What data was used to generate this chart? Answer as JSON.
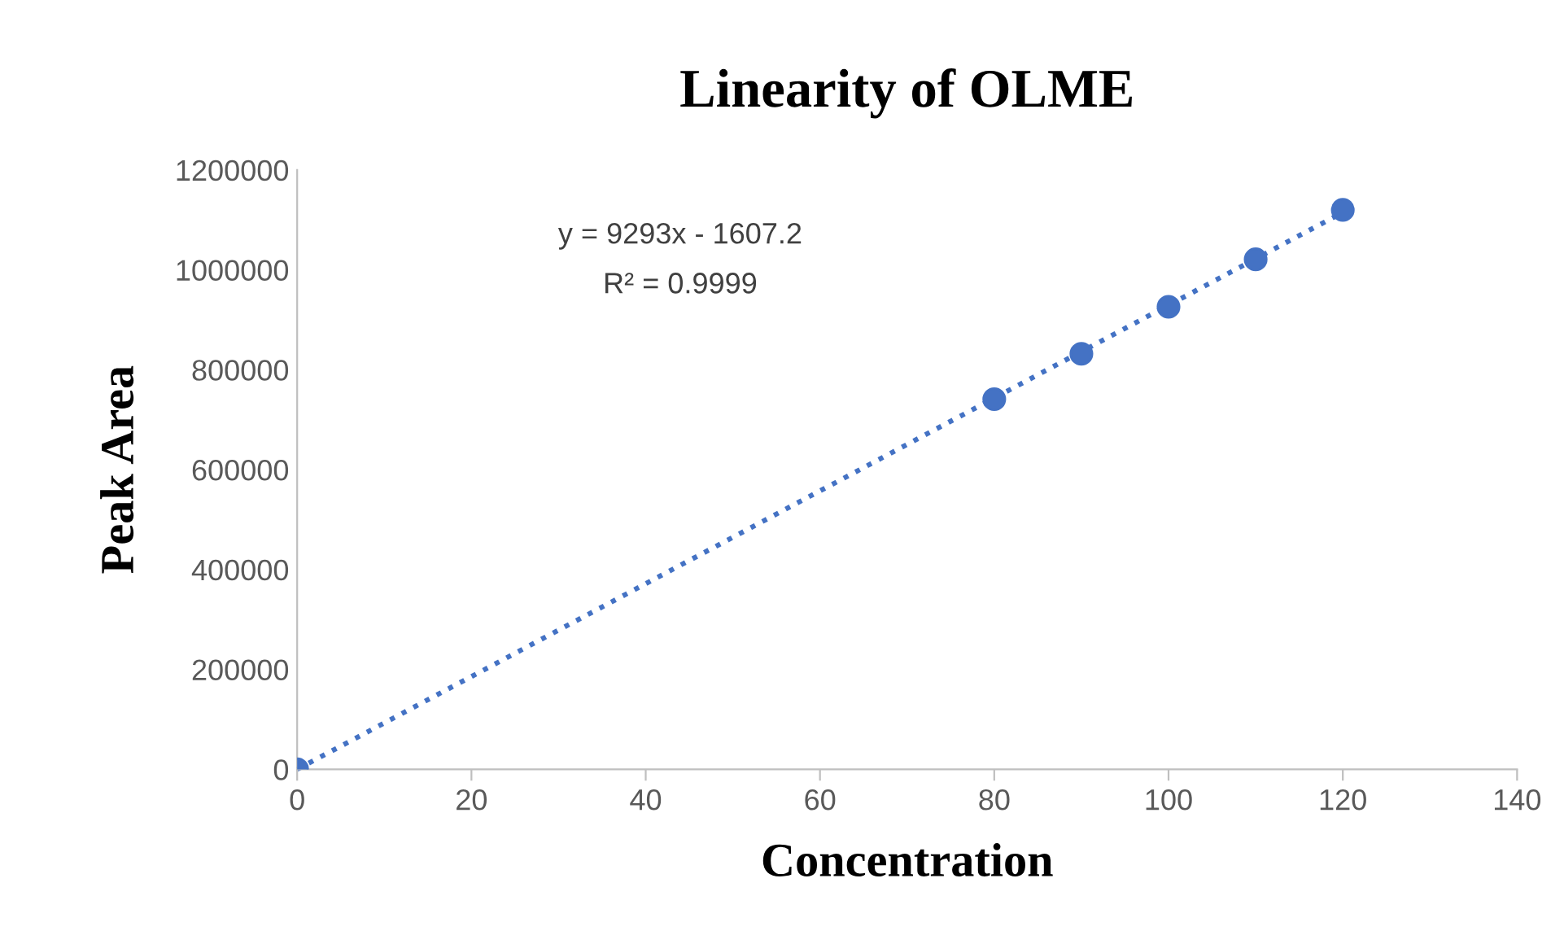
{
  "chart_data": {
    "type": "scatter",
    "title": "Linearity of OLME",
    "xlabel": "Concentration",
    "ylabel": "Peak Area",
    "series": [
      {
        "color": "#4472c4",
        "x": [
          0,
          80,
          90,
          100,
          110,
          120
        ],
        "values": [
          0,
          741000,
          832000,
          926000,
          1021000,
          1120000
        ],
        "marker": "circle"
      },
      {
        "type": "line",
        "color": "#4472c4",
        "x": [
          0,
          120
        ],
        "values": [
          0,
          1115000
        ],
        "line_style": "dotted",
        "marker": "none"
      }
    ],
    "annotations": [
      "y = 9293x - 1607.2",
      "R² = 0.9999"
    ],
    "xlim": [
      0,
      140
    ],
    "xticks": [
      0,
      20,
      40,
      60,
      80,
      100,
      120,
      140
    ],
    "ylim": [
      0,
      1200000
    ],
    "yticks": [
      0,
      200000,
      400000,
      600000,
      800000,
      1000000,
      1200000
    ],
    "grid": false,
    "legend": false
  }
}
